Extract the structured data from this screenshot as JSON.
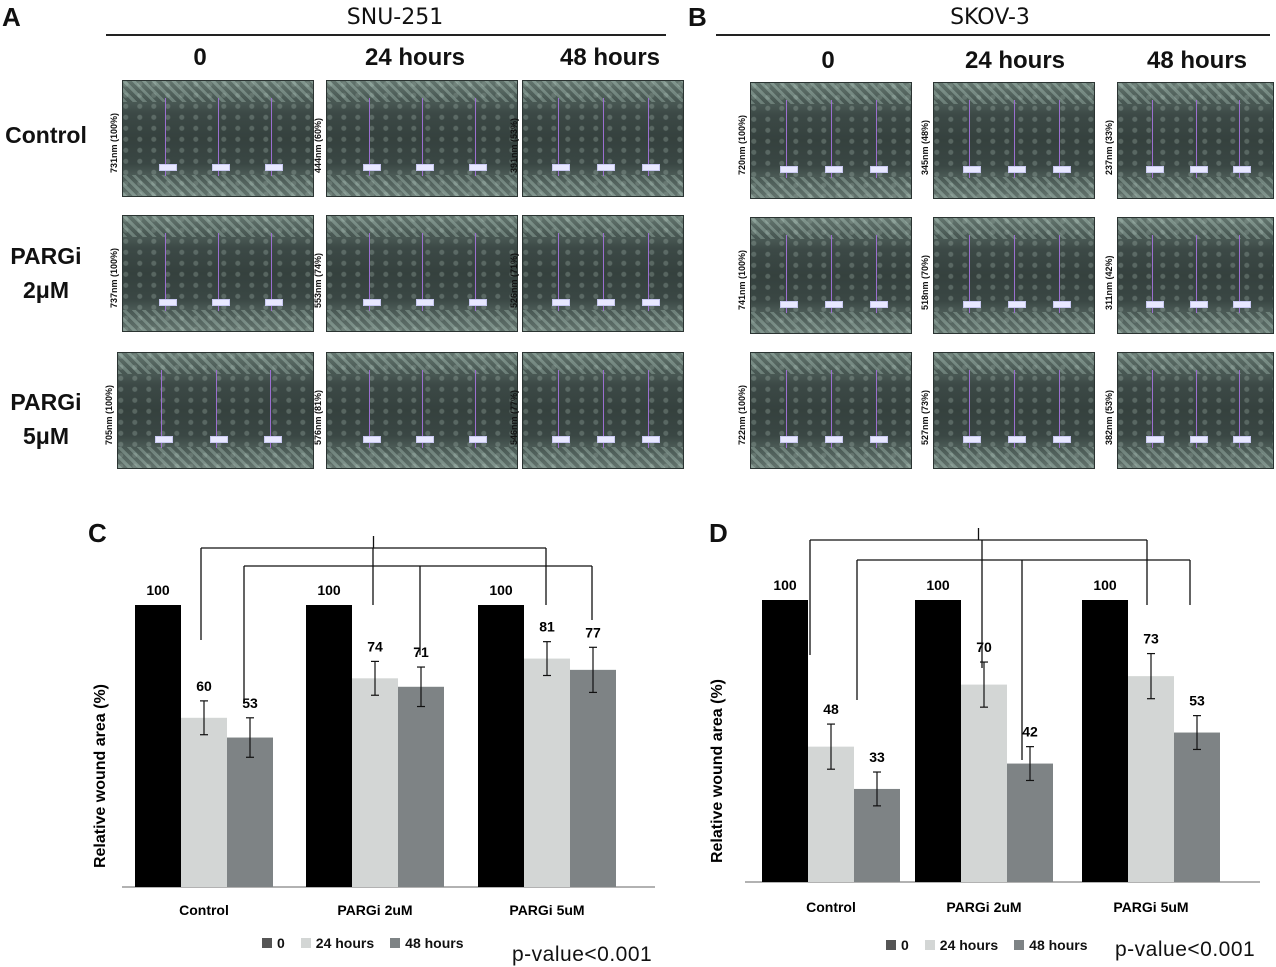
{
  "panels": {
    "A": {
      "letter": "A",
      "title": "SNU-251"
    },
    "B": {
      "letter": "B",
      "title": "SKOV-3"
    },
    "C": {
      "letter": "C"
    },
    "D": {
      "letter": "D"
    }
  },
  "columns": [
    "0",
    "24 hours",
    "48 hours"
  ],
  "rows_A": [
    "Control",
    "PARGi\n2μM",
    "PARGi\n5μM"
  ],
  "rows": {
    "control": "Control",
    "p2_a": "PARGi",
    "p2_b": "2μM",
    "p5_a": "PARGi",
    "p5_b": "5μM"
  },
  "micrograph_labels": {
    "A": [
      [
        "731nm (100%)",
        "444nm (60%)",
        "391nm (53%)"
      ],
      [
        "737nm (100%)",
        "553nm (74%)",
        "526nm (71%)"
      ],
      [
        "705nm (100%)",
        "576nm (81%)",
        "546nm (77%)"
      ]
    ],
    "B": [
      [
        "720nm (100%)",
        "345nm (48%)",
        "237nm (33%)"
      ],
      [
        "741nm (100%)",
        "518nm (70%)",
        "311nm (42%)"
      ],
      [
        "722nm (100%)",
        "527nm (73%)",
        "382nm (53%)"
      ]
    ]
  },
  "colors": {
    "black": "#000000",
    "light": "#d3d6d5",
    "mid": "#7e8385",
    "legend0": "#555555"
  },
  "chart_data": [
    {
      "type": "bar",
      "panel": "C",
      "categories": [
        "Control",
        "PARGi 2uM",
        "PARGi 5uM"
      ],
      "series": [
        {
          "name": "0",
          "values": [
            100,
            100,
            100
          ]
        },
        {
          "name": "24 hours",
          "values": [
            60,
            74,
            81
          ]
        },
        {
          "name": "48 hours",
          "values": [
            53,
            71,
            77
          ]
        }
      ],
      "errors": [
        [
          0,
          0,
          0
        ],
        [
          6,
          6,
          6
        ],
        [
          7,
          7,
          8
        ]
      ],
      "data_labels": [
        [
          "100",
          "100",
          "100"
        ],
        [
          "60",
          "74",
          "81"
        ],
        [
          "53",
          "71",
          "77"
        ]
      ],
      "ylabel": "Relative wound area (%)",
      "ylim": [
        0,
        100
      ],
      "legend": [
        "0",
        "24 hours",
        "48 hours"
      ],
      "legend_position": "bottom",
      "annotation": "p-value<0.001"
    },
    {
      "type": "bar",
      "panel": "D",
      "categories": [
        "Control",
        "PARGi 2uM",
        "PARGi 5uM"
      ],
      "series": [
        {
          "name": "0",
          "values": [
            100,
            100,
            100
          ]
        },
        {
          "name": "24 hours",
          "values": [
            48,
            70,
            73
          ]
        },
        {
          "name": "48 hours",
          "values": [
            33,
            42,
            53
          ]
        }
      ],
      "errors": [
        [
          0,
          0,
          0
        ],
        [
          8,
          8,
          8
        ],
        [
          6,
          6,
          6
        ]
      ],
      "data_labels": [
        [
          "100",
          "100",
          "100"
        ],
        [
          "48",
          "70",
          "73"
        ],
        [
          "33",
          "42",
          "53"
        ]
      ],
      "ylabel": "Relative wound area (%)",
      "ylim": [
        0,
        100
      ],
      "legend": [
        "0",
        "24 hours",
        "48 hours"
      ],
      "legend_position": "bottom",
      "annotation": "p-value<0.001"
    }
  ]
}
